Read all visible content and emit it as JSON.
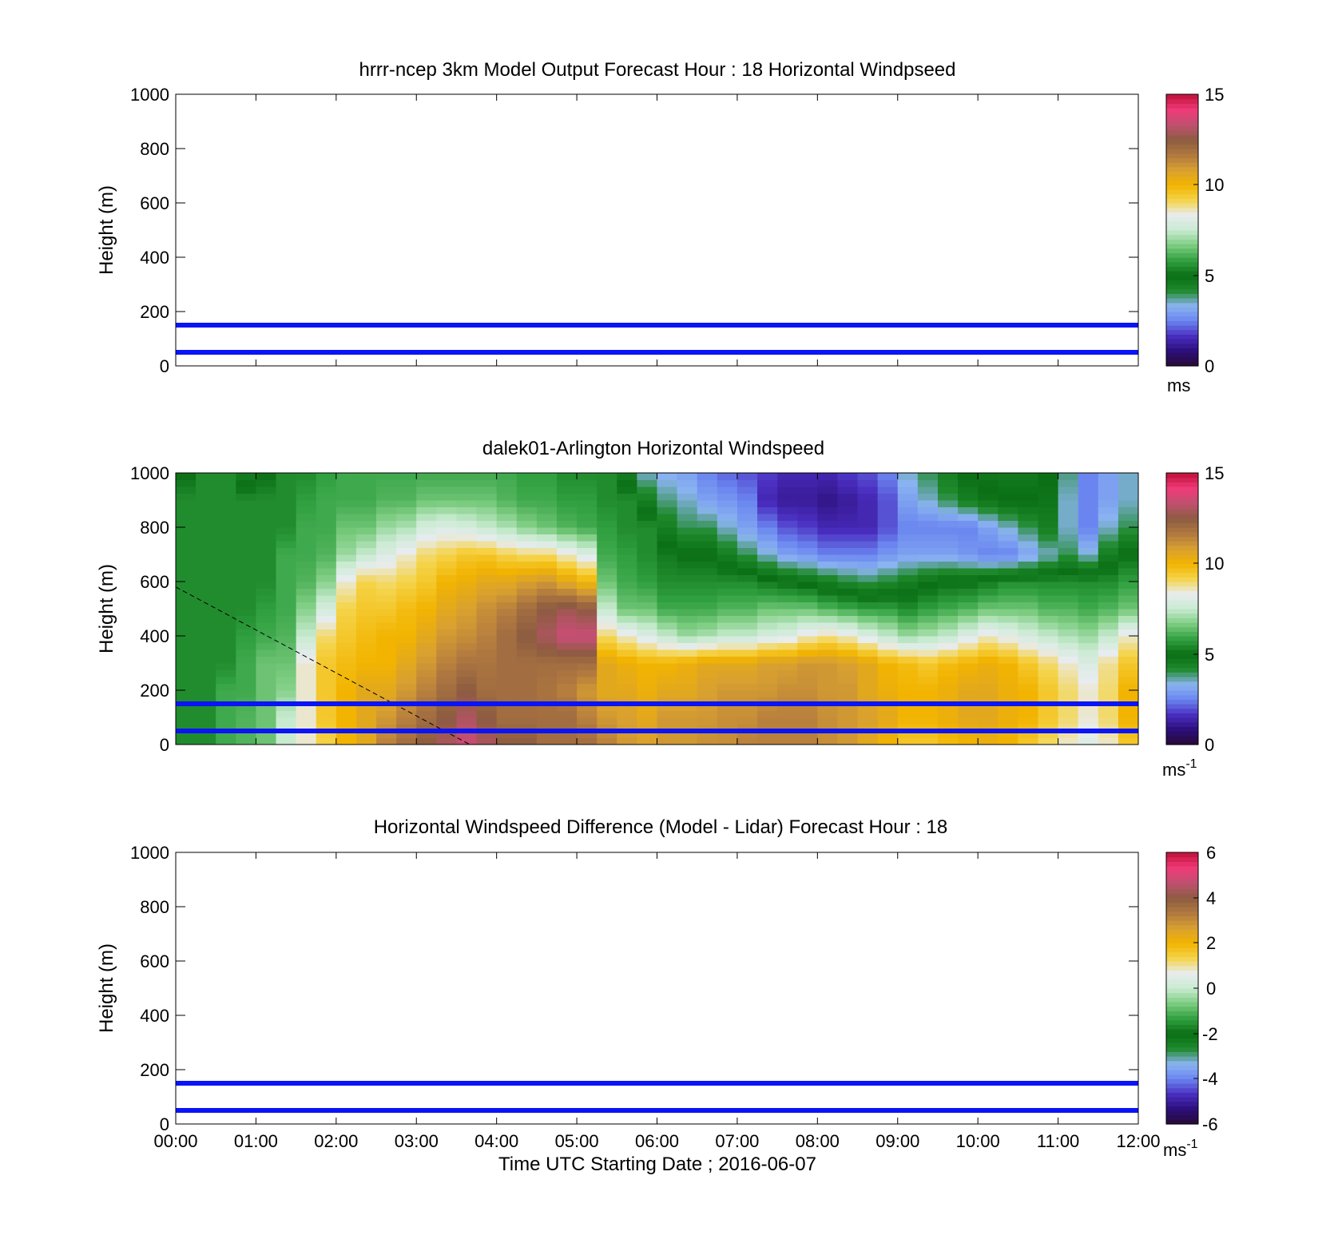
{
  "colormap_speed": [
    "#2a0a35",
    "#2b0e7a",
    "#4a2ec0",
    "#6a85f0",
    "#8ab4f0",
    "#1f8a2c",
    "#0a6e14",
    "#30a040",
    "#7ccc80",
    "#c8ebd0",
    "#e8ecf0",
    "#f5d44a",
    "#f2b400",
    "#d8a030",
    "#b07840",
    "#8c5c40",
    "#c05070",
    "#f03a78",
    "#c01038"
  ],
  "colormap_diff": [
    "#2a0a35",
    "#2b0e7a",
    "#4a2ec0",
    "#6a85f0",
    "#8ab4f0",
    "#1f8a2c",
    "#0a6e14",
    "#30a040",
    "#7ccc80",
    "#c8ebd0",
    "#e8ecf0",
    "#f5d44a",
    "#f2b400",
    "#d8a030",
    "#b07840",
    "#8c5c40",
    "#c05070",
    "#f03a78",
    "#c01038"
  ],
  "chart_data": [
    {
      "type": "heatmap",
      "title": "hrrr-ncep 3km Model Output   Forecast Hour : 18 Horizontal Windpseed",
      "ylabel": "Height (m)",
      "xlabel": "",
      "ylim": [
        0,
        1000
      ],
      "yticks": [
        "0",
        "200",
        "400",
        "600",
        "800",
        "1000"
      ],
      "xlim": [
        "00:00",
        "12:00"
      ],
      "colorbar": {
        "min": 0,
        "max": 15,
        "ticks": [
          "0",
          "5",
          "10",
          "15"
        ],
        "label": "ms"
      },
      "reference_lines_height_m": [
        50,
        150
      ],
      "reference_line_color": "#0a14f5",
      "data": []
    },
    {
      "type": "heatmap",
      "title": "dalek01-Arlington  Horizontal Windspeed",
      "ylabel": "Height (m)",
      "xlabel": "",
      "ylim": [
        0,
        1000
      ],
      "yticks": [
        "0",
        "200",
        "400",
        "600",
        "800",
        "1000"
      ],
      "xlim": [
        "00:00",
        "12:00"
      ],
      "colorbar": {
        "min": 0,
        "max": 15,
        "ticks": [
          "0",
          "5",
          "10",
          "15"
        ],
        "label": "ms",
        "label_sup": "-1"
      },
      "reference_lines_height_m": [
        50,
        150
      ],
      "reference_line_color": "#0a14f5",
      "dashed_line": {
        "from": [
          "00:00",
          580
        ],
        "to": [
          "03:40",
          0
        ]
      },
      "profiles_note": "Approximate wind speed (m/s) profiles, one column per 15 min (00:00 to 11:45); heights 0-1000 m.",
      "profile_heights_m": [
        0,
        100,
        200,
        300,
        400,
        500,
        600,
        700,
        800,
        900,
        1000
      ],
      "profiles": [
        [
          "00:00",
          [
            5.5,
            5.5,
            5.5,
            5.5,
            5.5,
            5.5,
            5.5,
            5.5,
            5.5,
            5.5,
            5.0
          ]
        ],
        [
          "00:15",
          [
            5.5,
            5.5,
            5.5,
            5.5,
            5.5,
            5.5,
            5.5,
            5.5,
            5.5,
            5.5,
            5.5
          ]
        ],
        [
          "00:30",
          [
            6.0,
            6.0,
            6.0,
            5.5,
            5.5,
            5.5,
            5.5,
            5.5,
            5.5,
            5.5,
            5.5
          ]
        ],
        [
          "00:45",
          [
            6.2,
            6.2,
            6.0,
            6.0,
            5.8,
            5.5,
            5.5,
            5.5,
            5.5,
            5.5,
            4.5
          ]
        ],
        [
          "01:00",
          [
            6.5,
            6.5,
            6.5,
            6.5,
            6.0,
            5.8,
            5.5,
            5.5,
            5.5,
            5.5,
            5.0
          ]
        ],
        [
          "01:15",
          [
            7.5,
            7.5,
            6.8,
            6.5,
            6.2,
            6.0,
            6.0,
            6.0,
            5.5,
            5.5,
            5.5
          ]
        ],
        [
          "01:30",
          [
            8.5,
            8.5,
            8.5,
            8.5,
            7.5,
            6.8,
            6.2,
            6.0,
            6.0,
            5.8,
            5.5
          ]
        ],
        [
          "01:45",
          [
            9.2,
            9.5,
            9.5,
            9.5,
            9.0,
            7.8,
            6.8,
            6.2,
            6.0,
            6.0,
            5.8
          ]
        ],
        [
          "02:00",
          [
            10.0,
            10.0,
            10.0,
            9.8,
            9.5,
            9.2,
            8.5,
            7.0,
            6.5,
            6.0,
            6.0
          ]
        ],
        [
          "02:15",
          [
            10.5,
            10.5,
            10.5,
            10.0,
            9.8,
            9.5,
            9.2,
            7.5,
            6.5,
            6.0,
            6.0
          ]
        ],
        [
          "02:30",
          [
            11.5,
            11.0,
            10.5,
            10.0,
            10.0,
            9.5,
            9.0,
            8.0,
            7.0,
            6.2,
            6.0
          ]
        ],
        [
          "02:45",
          [
            12.0,
            11.5,
            11.0,
            10.5,
            10.0,
            9.8,
            9.2,
            8.5,
            7.2,
            6.2,
            6.0
          ]
        ],
        [
          "03:00",
          [
            12.5,
            12.0,
            11.5,
            11.0,
            10.5,
            10.0,
            9.5,
            9.0,
            7.8,
            6.5,
            6.0
          ]
        ],
        [
          "03:15",
          [
            13.0,
            12.5,
            12.0,
            11.5,
            11.0,
            10.5,
            10.0,
            9.2,
            8.0,
            6.5,
            6.0
          ]
        ],
        [
          "03:30",
          [
            13.5,
            13.0,
            12.5,
            11.8,
            11.2,
            10.8,
            10.2,
            9.5,
            7.8,
            6.5,
            6.0
          ]
        ],
        [
          "03:45",
          [
            13.0,
            12.5,
            12.0,
            11.8,
            11.5,
            11.2,
            10.5,
            9.5,
            7.5,
            6.5,
            6.0
          ]
        ],
        [
          "04:00",
          [
            12.5,
            12.0,
            12.0,
            12.0,
            12.0,
            11.5,
            10.5,
            9.2,
            7.2,
            6.2,
            6.0
          ]
        ],
        [
          "04:15",
          [
            12.5,
            12.0,
            12.0,
            12.0,
            12.5,
            12.0,
            10.8,
            9.0,
            6.8,
            6.0,
            5.8
          ]
        ],
        [
          "04:30",
          [
            12.0,
            12.0,
            11.8,
            12.0,
            13.0,
            12.5,
            11.0,
            9.0,
            6.5,
            6.0,
            5.8
          ]
        ],
        [
          "04:45",
          [
            12.0,
            12.0,
            11.5,
            12.0,
            13.5,
            12.8,
            10.5,
            8.5,
            6.2,
            5.8,
            5.5
          ]
        ],
        [
          "05:00",
          [
            12.0,
            11.5,
            11.0,
            12.0,
            13.5,
            12.5,
            10.0,
            8.0,
            6.0,
            5.8,
            5.5
          ]
        ],
        [
          "05:15",
          [
            11.5,
            11.0,
            10.5,
            10.5,
            9.0,
            7.5,
            6.5,
            6.0,
            5.8,
            5.5,
            5.5
          ]
        ],
        [
          "05:30",
          [
            11.0,
            10.8,
            10.5,
            10.2,
            8.5,
            6.5,
            6.0,
            5.8,
            5.5,
            5.5,
            4.5
          ]
        ],
        [
          "05:45",
          [
            10.8,
            10.5,
            10.2,
            10.0,
            8.0,
            6.5,
            5.8,
            5.5,
            5.5,
            4.5,
            3.5
          ]
        ],
        [
          "06:00",
          [
            11.0,
            11.0,
            10.5,
            10.0,
            7.5,
            6.0,
            5.5,
            5.2,
            4.5,
            3.8,
            3.2
          ]
        ],
        [
          "06:15",
          [
            11.0,
            11.0,
            10.5,
            10.2,
            7.0,
            6.0,
            5.5,
            5.0,
            4.0,
            3.5,
            3.0
          ]
        ],
        [
          "06:30",
          [
            11.2,
            11.0,
            10.8,
            10.5,
            7.2,
            6.0,
            5.5,
            5.0,
            4.0,
            3.0,
            2.5
          ]
        ],
        [
          "06:45",
          [
            11.2,
            11.2,
            11.0,
            10.5,
            7.5,
            6.2,
            5.5,
            4.5,
            3.5,
            2.8,
            2.2
          ]
        ],
        [
          "07:00",
          [
            11.5,
            11.2,
            11.0,
            10.5,
            7.5,
            6.2,
            5.5,
            4.0,
            3.0,
            2.5,
            2.0
          ]
        ],
        [
          "07:15",
          [
            11.5,
            11.5,
            11.0,
            10.8,
            7.8,
            6.5,
            5.2,
            3.5,
            2.5,
            1.5,
            1.8
          ]
        ],
        [
          "07:30",
          [
            11.5,
            11.5,
            11.2,
            10.8,
            8.0,
            6.5,
            5.0,
            3.0,
            2.0,
            1.2,
            1.5
          ]
        ],
        [
          "07:45",
          [
            11.5,
            11.5,
            11.2,
            11.0,
            8.5,
            6.5,
            4.8,
            2.8,
            1.8,
            1.2,
            1.5
          ]
        ],
        [
          "08:00",
          [
            11.2,
            11.2,
            11.0,
            11.0,
            8.8,
            6.2,
            4.5,
            2.5,
            1.5,
            1.0,
            1.5
          ]
        ],
        [
          "08:15",
          [
            11.0,
            11.0,
            11.0,
            10.8,
            8.5,
            6.0,
            4.2,
            2.5,
            1.5,
            1.2,
            1.8
          ]
        ],
        [
          "08:30",
          [
            10.5,
            10.8,
            10.5,
            10.5,
            8.0,
            5.8,
            4.0,
            2.5,
            1.5,
            1.5,
            2.0
          ]
        ],
        [
          "08:45",
          [
            10.0,
            10.5,
            10.2,
            10.0,
            7.5,
            5.8,
            4.2,
            2.8,
            2.0,
            2.0,
            2.5
          ]
        ],
        [
          "09:00",
          [
            9.5,
            10.0,
            10.0,
            9.8,
            7.0,
            5.5,
            4.5,
            3.0,
            2.5,
            3.0,
            3.5
          ]
        ],
        [
          "09:15",
          [
            9.5,
            10.0,
            10.0,
            9.5,
            7.2,
            5.8,
            4.8,
            3.0,
            2.5,
            3.5,
            4.0
          ]
        ],
        [
          "09:30",
          [
            9.8,
            10.2,
            10.2,
            9.8,
            7.5,
            6.0,
            5.0,
            3.0,
            2.5,
            4.0,
            4.5
          ]
        ],
        [
          "09:45",
          [
            10.0,
            10.5,
            10.5,
            10.0,
            8.0,
            6.2,
            5.0,
            2.8,
            2.5,
            4.5,
            5.0
          ]
        ],
        [
          "10:00",
          [
            10.2,
            10.5,
            10.5,
            10.2,
            8.5,
            6.5,
            5.2,
            2.5,
            3.0,
            4.8,
            5.2
          ]
        ],
        [
          "10:15",
          [
            10.0,
            10.2,
            10.2,
            10.0,
            8.2,
            6.5,
            5.5,
            2.5,
            3.5,
            5.0,
            5.2
          ]
        ],
        [
          "10:30",
          [
            9.5,
            10.0,
            10.0,
            9.5,
            7.8,
            6.5,
            5.5,
            3.0,
            4.0,
            5.0,
            5.2
          ]
        ],
        [
          "10:45",
          [
            9.0,
            9.5,
            9.5,
            9.0,
            7.5,
            6.2,
            5.5,
            3.5,
            4.5,
            4.8,
            5.0
          ]
        ],
        [
          "11:00",
          [
            8.5,
            9.0,
            9.0,
            8.5,
            7.2,
            6.2,
            5.5,
            4.0,
            3.5,
            3.5,
            3.8
          ]
        ],
        [
          "11:15",
          [
            8.0,
            8.5,
            8.5,
            8.0,
            7.0,
            6.0,
            5.5,
            3.5,
            2.5,
            2.5,
            2.5
          ]
        ],
        [
          "11:30",
          [
            8.5,
            9.0,
            9.0,
            8.8,
            7.5,
            6.2,
            5.5,
            4.5,
            3.5,
            3.0,
            3.0
          ]
        ],
        [
          "11:45",
          [
            9.5,
            10.0,
            10.0,
            9.5,
            8.5,
            6.5,
            5.8,
            5.0,
            4.0,
            3.5,
            3.5
          ]
        ]
      ]
    },
    {
      "type": "heatmap",
      "title": "Horizontal Windspeed Difference (Model - Lidar) Forecast Hour : 18",
      "ylabel": "Height (m)",
      "xlabel": "Time UTC  Starting Date ; 2016-06-07",
      "ylim": [
        0,
        1000
      ],
      "yticks": [
        "0",
        "200",
        "400",
        "600",
        "800",
        "1000"
      ],
      "xticks": [
        "00:00",
        "01:00",
        "02:00",
        "03:00",
        "04:00",
        "05:00",
        "06:00",
        "07:00",
        "08:00",
        "09:00",
        "10:00",
        "11:00",
        "12:00"
      ],
      "xlim": [
        "00:00",
        "12:00"
      ],
      "colorbar": {
        "min": -6,
        "max": 6,
        "ticks": [
          "-6",
          "-4",
          "-2",
          "0",
          "2",
          "4",
          "6"
        ],
        "label": "ms",
        "label_sup": "-1"
      },
      "reference_lines_height_m": [
        50,
        150
      ],
      "reference_line_color": "#0a14f5",
      "data": []
    }
  ]
}
